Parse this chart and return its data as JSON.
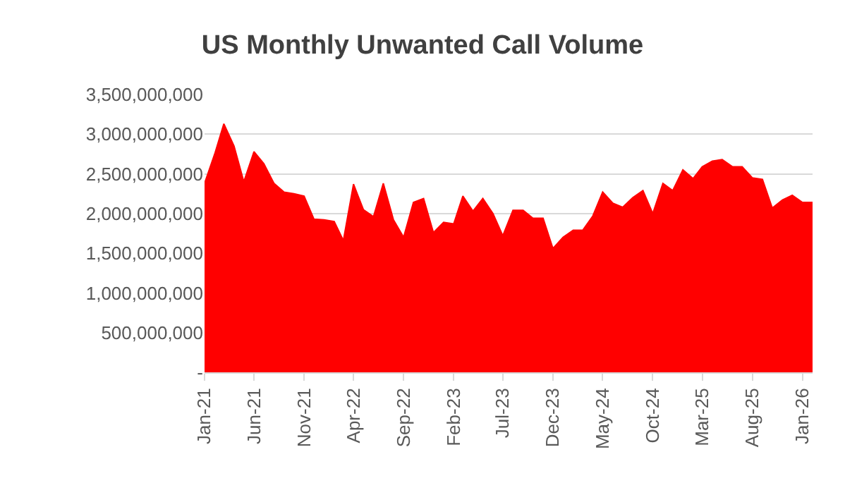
{
  "chart_data": {
    "type": "area",
    "title": "US Monthly Unwanted Call Volume",
    "x": [
      "2021-01",
      "2021-02",
      "2021-03",
      "2021-04",
      "2021-05",
      "2021-06",
      "2021-07",
      "2021-08",
      "2021-09",
      "2021-10",
      "2021-11",
      "2021-12",
      "2022-01",
      "2022-02",
      "2022-03",
      "2022-04",
      "2022-05",
      "2022-06",
      "2022-07",
      "2022-08",
      "2022-09",
      "2022-10",
      "2022-11",
      "2022-12",
      "2023-01",
      "2023-02",
      "2023-03",
      "2023-04",
      "2023-05",
      "2023-06",
      "2023-07",
      "2023-08",
      "2023-09",
      "2023-10",
      "2023-11",
      "2023-12",
      "2024-01",
      "2024-02",
      "2024-03",
      "2024-04",
      "2024-05",
      "2024-06",
      "2024-07",
      "2024-08",
      "2024-09",
      "2024-10",
      "2024-11",
      "2024-12",
      "2025-01",
      "2025-02",
      "2025-03",
      "2025-04",
      "2025-05",
      "2025-06",
      "2025-07",
      "2025-08",
      "2025-09",
      "2025-10",
      "2025-11",
      "2025-12",
      "2026-01",
      "2026-02"
    ],
    "series": [
      {
        "color": "#ff0000",
        "values": [
          2380000000,
          2750000000,
          3130000000,
          2850000000,
          2400000000,
          2780000000,
          2630000000,
          2380000000,
          2270000000,
          2250000000,
          2220000000,
          1930000000,
          1920000000,
          1900000000,
          1660000000,
          2370000000,
          2050000000,
          1960000000,
          2380000000,
          1920000000,
          1700000000,
          2140000000,
          2190000000,
          1760000000,
          1890000000,
          1870000000,
          2220000000,
          2030000000,
          2190000000,
          2000000000,
          1720000000,
          2040000000,
          2040000000,
          1940000000,
          1940000000,
          1560000000,
          1700000000,
          1790000000,
          1790000000,
          1970000000,
          2270000000,
          2130000000,
          2080000000,
          2200000000,
          2290000000,
          2000000000,
          2380000000,
          2290000000,
          2550000000,
          2440000000,
          2590000000,
          2660000000,
          2680000000,
          2590000000,
          2590000000,
          2450000000,
          2430000000,
          2070000000,
          2170000000,
          2230000000,
          2140000000,
          2140000000
        ]
      }
    ],
    "xlim": [
      "2021-01",
      "2026-02"
    ],
    "xticks": [
      {
        "value": "2021-01",
        "label": "Jan-21"
      },
      {
        "value": "2021-06",
        "label": "Jun-21"
      },
      {
        "value": "2021-11",
        "label": "Nov-21"
      },
      {
        "value": "2022-04",
        "label": "Apr-22"
      },
      {
        "value": "2022-09",
        "label": "Sep-22"
      },
      {
        "value": "2023-02",
        "label": "Feb-23"
      },
      {
        "value": "2023-07",
        "label": "Jul-23"
      },
      {
        "value": "2023-12",
        "label": "Dec-23"
      },
      {
        "value": "2024-05",
        "label": "May-24"
      },
      {
        "value": "2024-10",
        "label": "Oct-24"
      },
      {
        "value": "2025-03",
        "label": "Mar-25"
      },
      {
        "value": "2025-08",
        "label": "Aug-25"
      },
      {
        "value": "2026-01",
        "label": "Jan-26"
      }
    ],
    "ylim": [
      0,
      3500000000
    ],
    "yticks": [
      {
        "value": 0,
        "label": "-"
      },
      {
        "value": 500000000,
        "label": "500,000,000"
      },
      {
        "value": 1000000000,
        "label": "1,000,000,000"
      },
      {
        "value": 1500000000,
        "label": "1,500,000,000"
      },
      {
        "value": 2000000000,
        "label": "2,000,000,000"
      },
      {
        "value": 2500000000,
        "label": "2,500,000,000"
      },
      {
        "value": 3000000000,
        "label": "3,000,000,000"
      },
      {
        "value": 3500000000,
        "label": "3,500,000,000"
      }
    ],
    "grid": "y"
  }
}
